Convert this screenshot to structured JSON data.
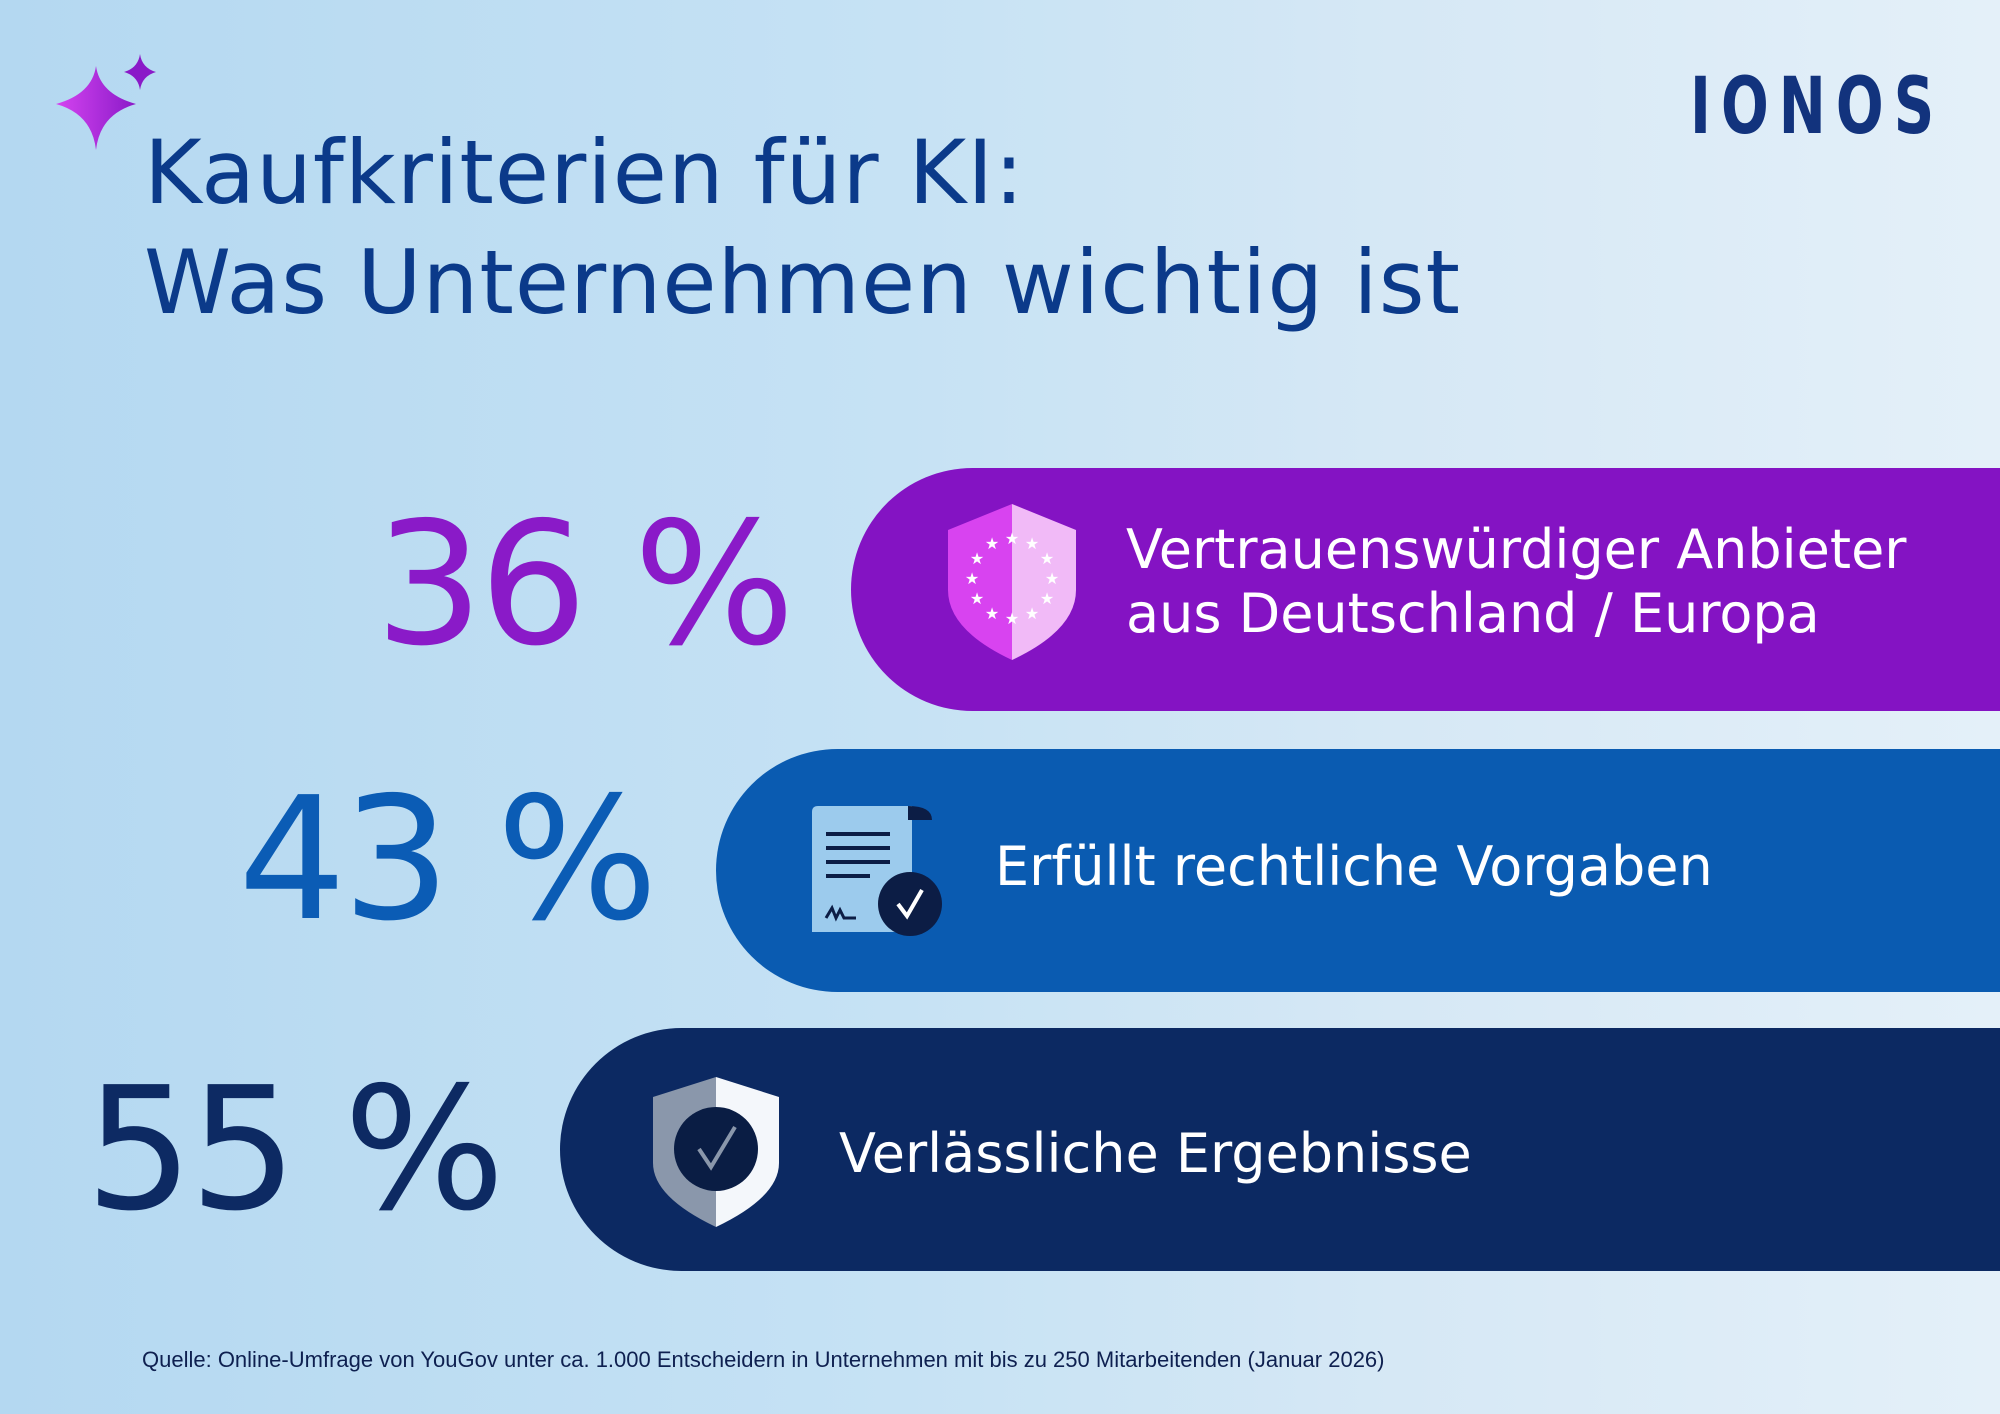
{
  "title": {
    "line1": "Kaufkriterien für KI:",
    "line2": "Was Unternehmen wichtig ist"
  },
  "logo": "IONOS",
  "items": [
    {
      "percent": "36 %",
      "label_line1": "Vertrauenswürdiger Anbieter",
      "label_line2": "aus Deutschland / Europa",
      "icon": "eu-shield-icon",
      "color": "#8413c3",
      "percent_color": "#8a1ac8"
    },
    {
      "percent": "43 %",
      "label_line1": "Erfüllt rechtliche Vorgaben",
      "icon": "signed-document-check-icon",
      "color": "#0a5bb1",
      "percent_color": "#0b5cb5"
    },
    {
      "percent": "55 %",
      "label_line1": "Verlässliche Ergebnisse",
      "icon": "shield-check-icon",
      "color": "#0c2962",
      "percent_color": "#0d2a63"
    }
  ],
  "source": "Quelle: Online-Umfrage von YouGov unter ca. 1.000 Entscheidern in Unternehmen mit bis zu 250 Mitarbeitenden (Januar 2026)"
}
